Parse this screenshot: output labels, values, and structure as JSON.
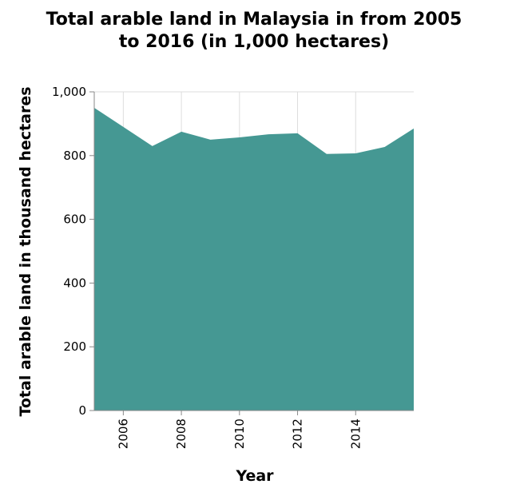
{
  "chart_data": {
    "type": "area",
    "title_lines": [
      "Total arable land in Malaysia in from 2005",
      "to 2016 (in 1,000 hectares)"
    ],
    "xlabel": "Year",
    "ylabel": "Total arable land in thousand hectares",
    "x": [
      2005,
      2006,
      2007,
      2008,
      2009,
      2010,
      2011,
      2012,
      2013,
      2014,
      2015,
      2016
    ],
    "values": [
      950,
      890,
      830,
      875,
      850,
      857,
      867,
      870,
      805,
      807,
      827,
      885
    ],
    "xlim": [
      2005,
      2016
    ],
    "ylim": [
      0,
      1000
    ],
    "x_ticks": [
      2006,
      2008,
      2010,
      2012,
      2014
    ],
    "y_ticks": [
      0,
      200,
      400,
      600,
      800,
      1000
    ],
    "y_tick_labels": [
      "0",
      "200",
      "400",
      "600",
      "800",
      "1,000"
    ],
    "fill_color": "#459893",
    "grid": true
  }
}
